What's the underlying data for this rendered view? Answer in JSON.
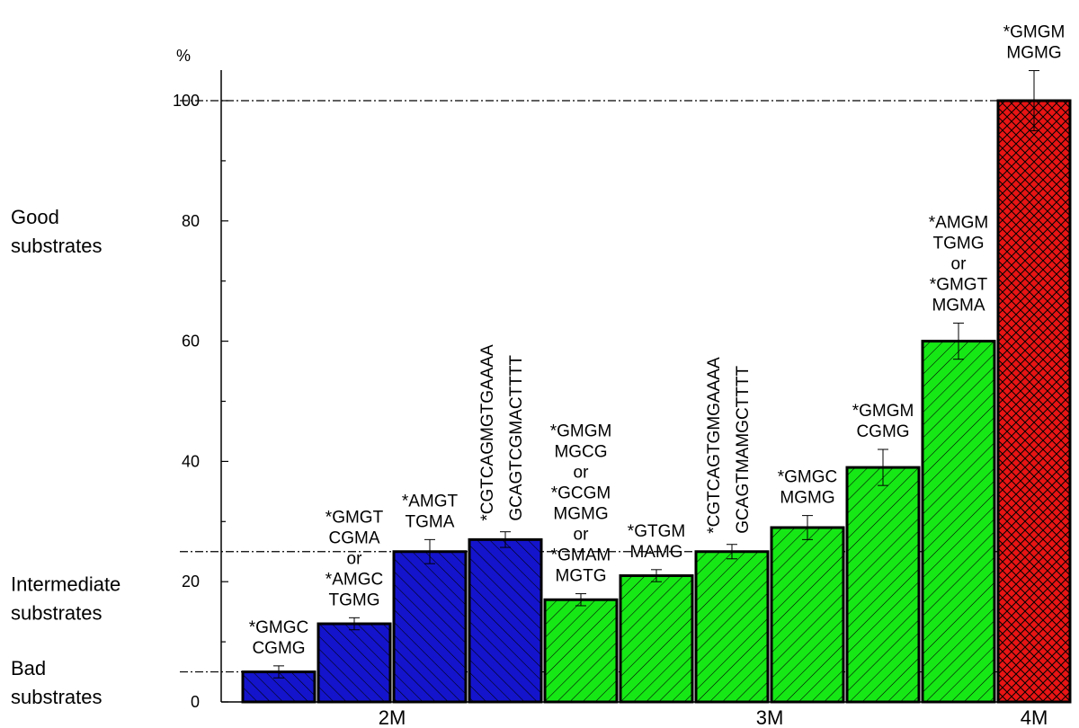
{
  "chart_data": {
    "type": "bar",
    "ylabel": "%",
    "ylim": [
      0,
      100
    ],
    "yticks": [
      0,
      20,
      40,
      60,
      80,
      100
    ],
    "grid": false,
    "reference_lines": [
      {
        "y": 100,
        "style": "dash-dot"
      },
      {
        "y": 25,
        "style": "dash-dot"
      },
      {
        "y": 5,
        "style": "dash-dot"
      }
    ],
    "side_labels": [
      {
        "lines": [
          "Good",
          "substrates"
        ],
        "y": 78
      },
      {
        "lines": [
          "Intermediate",
          "substrates"
        ],
        "y": 17
      },
      {
        "lines": [
          "Bad",
          "substrates"
        ],
        "y": 3
      }
    ],
    "groups": [
      {
        "label": "2M",
        "color": "#1414cc",
        "hatch": "backslash",
        "bars": [
          0,
          1,
          2,
          3
        ]
      },
      {
        "label": "3M",
        "color": "#16e816",
        "hatch": "slash",
        "bars": [
          4,
          5,
          6,
          7,
          8,
          9
        ]
      },
      {
        "label": "4M",
        "color": "#e81414",
        "hatch": "cross",
        "bars": [
          10
        ]
      }
    ],
    "bars": [
      {
        "value": 5,
        "error": 1,
        "label_lines": [
          "*GMGC",
          "CGMG"
        ],
        "label_orientation": "horizontal"
      },
      {
        "value": 13,
        "error": 1,
        "label_lines": [
          "*GMGT",
          "CGMA",
          "or",
          "*AMGC",
          "TGMG"
        ],
        "label_orientation": "horizontal"
      },
      {
        "value": 25,
        "error": 2,
        "label_lines": [
          "*AMGT",
          "TGMA"
        ],
        "label_orientation": "horizontal"
      },
      {
        "value": 27,
        "error": 1.3,
        "label_lines": [
          "*CGTCAGMGTGAAAA",
          "GCAGTCGMACTTTT"
        ],
        "label_orientation": "vertical"
      },
      {
        "value": 17,
        "error": 1,
        "label_lines": [
          "*GMGM",
          "MGCG",
          "or",
          "*GCGM",
          "MGMG",
          "or",
          "*GMAM",
          "MGTG"
        ],
        "label_orientation": "horizontal"
      },
      {
        "value": 21,
        "error": 1,
        "label_lines": [
          "*GTGM",
          "MAMG"
        ],
        "label_orientation": "horizontal"
      },
      {
        "value": 25,
        "error": 1.2,
        "label_lines": [
          "*CGTCAGTGMGAAAA",
          "GCAGTMAMGCTTTT"
        ],
        "label_orientation": "vertical"
      },
      {
        "value": 29,
        "error": 2,
        "label_lines": [
          "*GMGC",
          "MGMG"
        ],
        "label_orientation": "horizontal"
      },
      {
        "value": 39,
        "error": 3,
        "label_lines": [
          "*GMGM",
          "CGMG"
        ],
        "label_orientation": "horizontal"
      },
      {
        "value": 60,
        "error": 3,
        "label_lines": [
          "*AMGM",
          "TGMG",
          "or",
          "*GMGT",
          "MGMA"
        ],
        "label_orientation": "horizontal"
      },
      {
        "value": 100,
        "error": 5,
        "label_lines": [
          "*GMGM",
          "MGMG"
        ],
        "label_orientation": "horizontal"
      }
    ]
  }
}
